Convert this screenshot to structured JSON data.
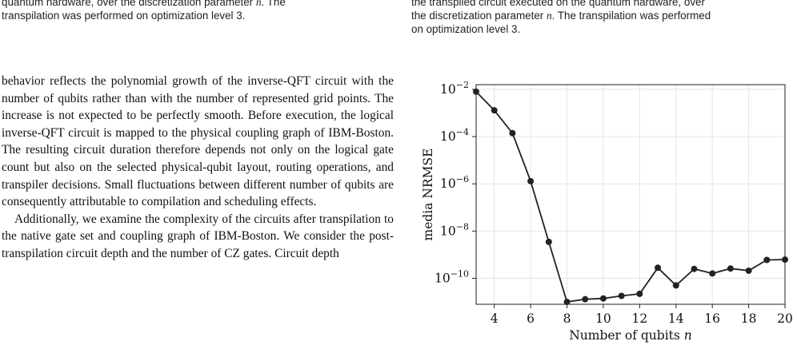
{
  "left_caption": {
    "line1": "quantum hardware, over the discretization parameter ",
    "param": "n",
    "line1_end": ". The",
    "line2": "transpilation was performed on optimization level ",
    "level": "3",
    "line2_end": "."
  },
  "right_caption": {
    "line1": "the transpiled circuit executed on the quantum hardware, over",
    "line2": "the discretization parameter ",
    "param": "n",
    "line2_end": ". The transpilation was performed",
    "line3": "on optimization level ",
    "level": "3",
    "line3_end": "."
  },
  "body": {
    "para1": "behavior reflects the polynomial growth of the inverse-QFT circuit with the number of qubits rather than with the number of represented grid points. The increase is not expected to be perfectly smooth. Before execution, the logical inverse-QFT circuit is mapped to the physical coupling graph of IBM-Boston. The resulting circuit duration therefore depends not only on the logical gate count but also on the selected physical-qubit layout, routing operations, and transpiler decisions. Small fluctuations between different number of qubits are consequently attributable to compilation and scheduling effects.",
    "para2": "Additionally, we examine the complexity of the circuits after transpilation to the native gate set and coupling graph of IBM-Boston. We consider the post-transpilation circuit depth and the number of CZ gates. Circuit depth"
  },
  "chart_data": {
    "type": "line",
    "xlabel": "Number of qubits ",
    "xlabel_var": "n",
    "ylabel": "media NRMSE",
    "yscale": "log",
    "xlim": [
      3,
      20
    ],
    "ylim_exp": [
      -11.1,
      -1.8
    ],
    "x_ticks": [
      "4",
      "6",
      "8",
      "10",
      "12",
      "14",
      "16",
      "18",
      "20"
    ],
    "y_ticks_exp": [
      "-2",
      "-4",
      "-6",
      "-8",
      "-10"
    ],
    "grid": true,
    "line_color": "#222222",
    "x": [
      3,
      4,
      5,
      6,
      7,
      8,
      9,
      10,
      11,
      12,
      13,
      14,
      15,
      16,
      17,
      18,
      19,
      20
    ],
    "y": [
      0.008,
      0.0013,
      0.00014,
      1.3e-06,
      3.5e-09,
      1e-11,
      1.3e-11,
      1.4e-11,
      1.8e-11,
      2.2e-11,
      2.8e-10,
      5e-11,
      2.5e-10,
      1.6e-10,
      2.6e-10,
      2.1e-10,
      6e-10,
      6.2e-10
    ]
  }
}
